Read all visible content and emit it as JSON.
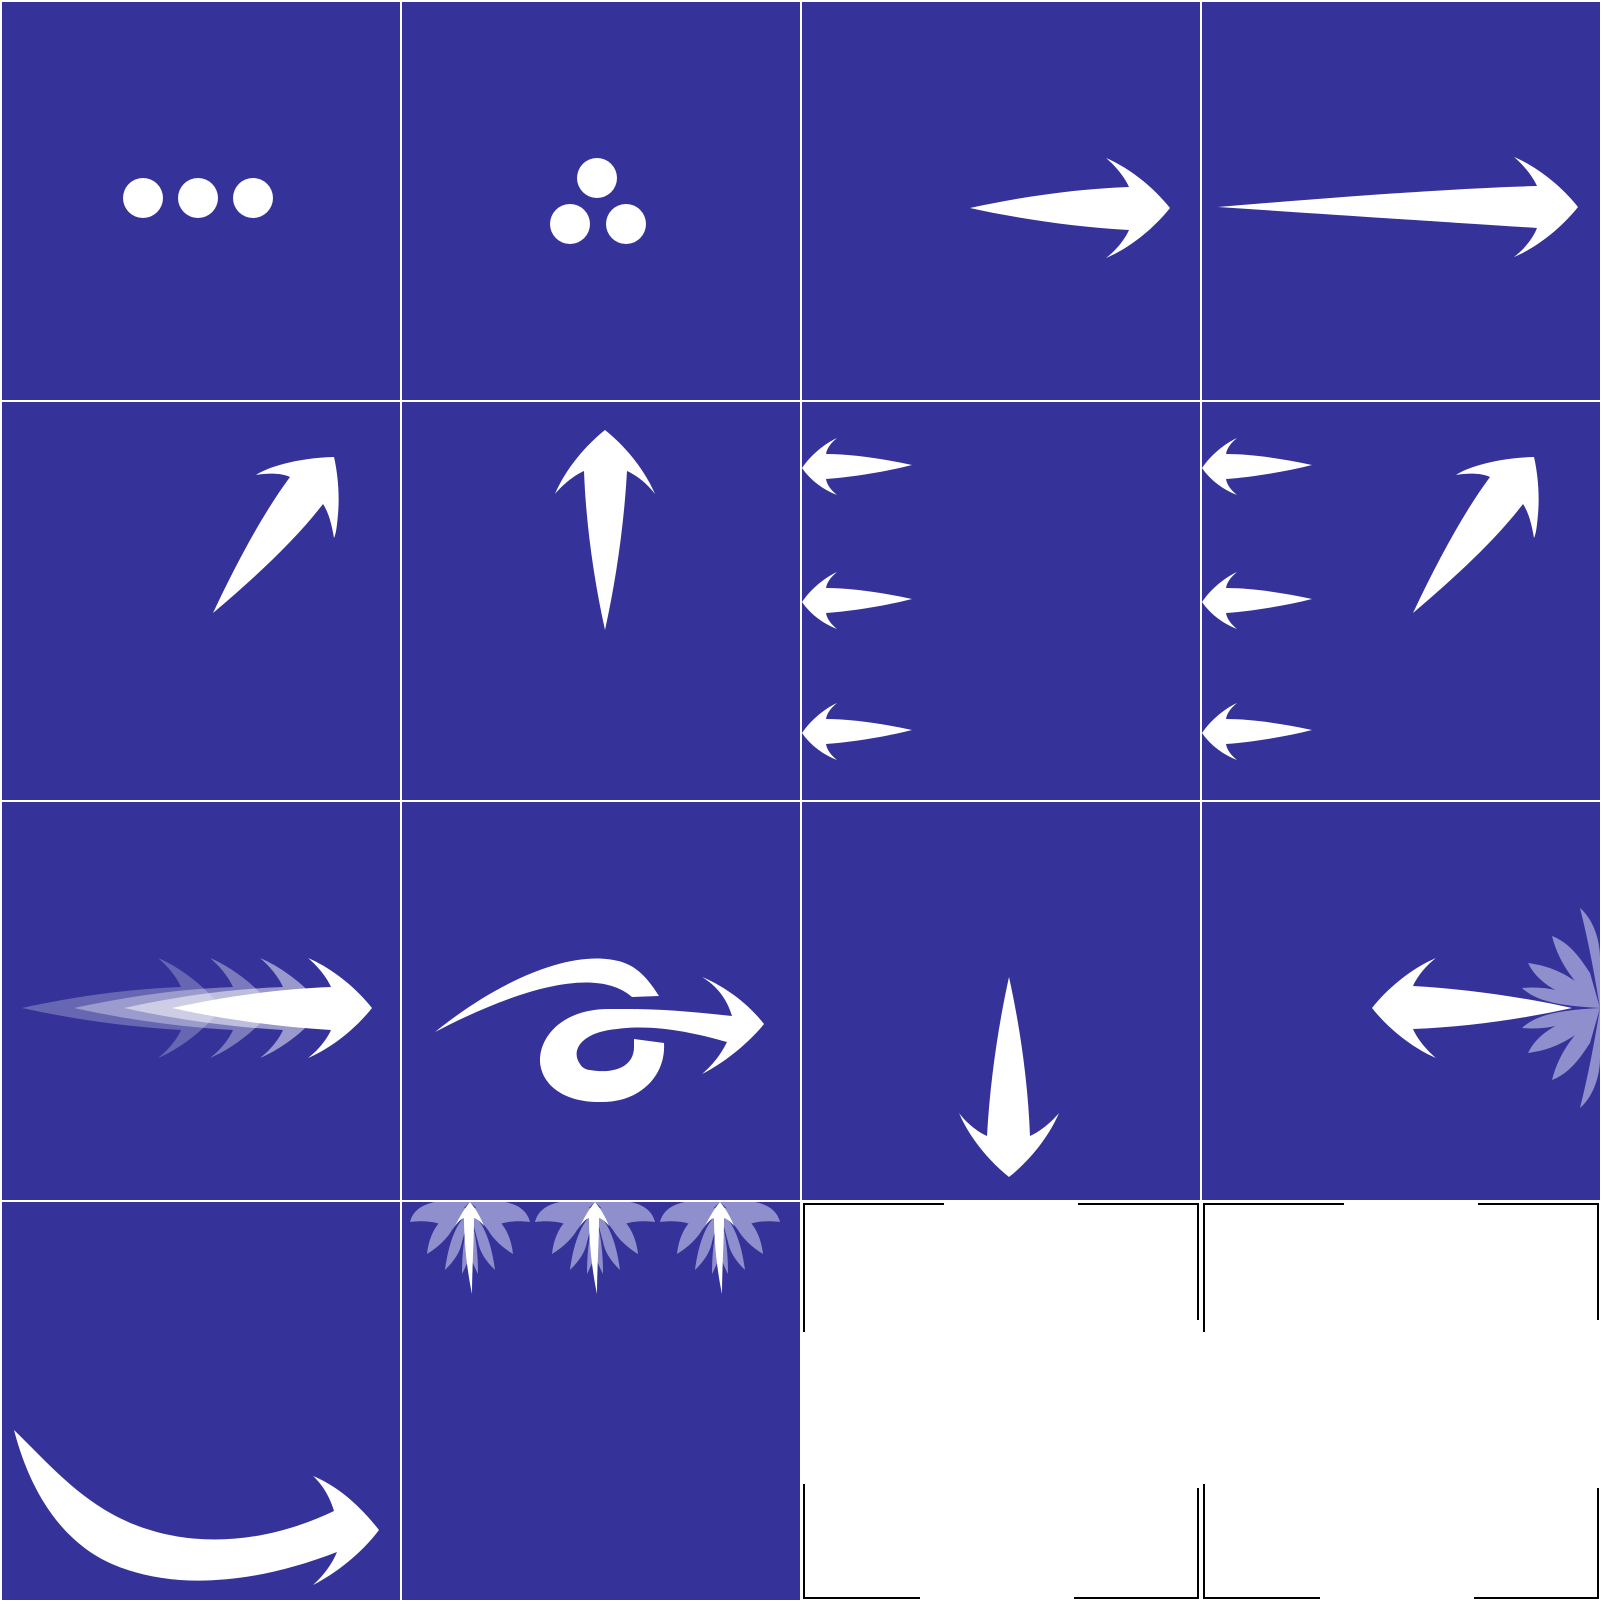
{
  "theme": {
    "tile_background": "#35339a",
    "glyph_color": "#ffffff",
    "ghost_color": "#8f8fce",
    "crop_mark_color": "#000000"
  },
  "tiles": [
    {
      "name": "three-dots-horizontal-icon"
    },
    {
      "name": "three-dots-triangle-icon"
    },
    {
      "name": "arrow-right-short-icon"
    },
    {
      "name": "arrow-right-long-icon"
    },
    {
      "name": "arrow-up-right-icon"
    },
    {
      "name": "arrow-up-icon"
    },
    {
      "name": "arrows-left-triple-icon"
    },
    {
      "name": "arrows-left-triple-with-up-right-icon"
    },
    {
      "name": "arrow-right-motion-trail-icon"
    },
    {
      "name": "arrow-right-looped-icon"
    },
    {
      "name": "arrow-down-icon"
    },
    {
      "name": "arrow-left-burst-icon"
    },
    {
      "name": "arrow-right-curved-icon"
    },
    {
      "name": "arrows-up-triple-burst-icon"
    }
  ],
  "empty_slots": 2
}
